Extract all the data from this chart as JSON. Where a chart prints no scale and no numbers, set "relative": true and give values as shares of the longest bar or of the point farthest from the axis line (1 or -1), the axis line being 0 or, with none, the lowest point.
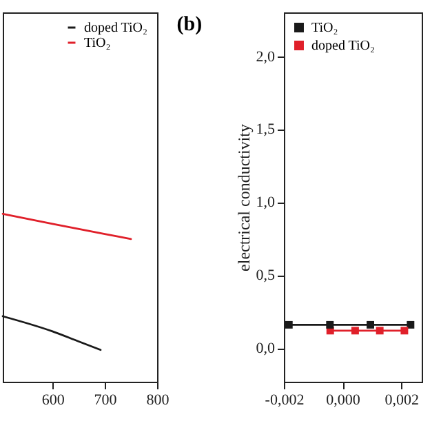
{
  "chart_data": [
    {
      "type": "line",
      "relative": true,
      "xlim": [
        505,
        800
      ],
      "xticks": [
        600,
        700,
        800
      ],
      "legend": "top right",
      "series": [
        {
          "name": "doped TiO₂",
          "color": "#1a1a1a",
          "x": [
            505,
            600,
            650,
            692
          ],
          "values": [
            0.39,
            0.3,
            0.24,
            0.19
          ]
        },
        {
          "name": "TiO₂",
          "color": "#e0202a",
          "x": [
            505,
            600,
            700,
            750
          ],
          "values": [
            1,
            0.94,
            0.88,
            0.85
          ]
        }
      ]
    },
    {
      "type": "line",
      "marker": "square",
      "ylabel": "electrical conductivity",
      "annotations": [
        "(b)"
      ],
      "legend": "top left",
      "xlim": [
        -0.002,
        0.0027
      ],
      "xticks": [
        {
          "value": -0.002,
          "label": "-0,002"
        },
        {
          "value": 0,
          "label": "0,000"
        },
        {
          "value": 0.002,
          "label": "0,002"
        }
      ],
      "ylim": [
        -0.23,
        2.3
      ],
      "yticks": [
        {
          "value": 0,
          "label": "0,0"
        },
        {
          "value": 0.5,
          "label": "0,5"
        },
        {
          "value": 1,
          "label": "1,0"
        },
        {
          "value": 1.5,
          "label": "1,5"
        },
        {
          "value": 2,
          "label": "2,0"
        }
      ],
      "series": [
        {
          "name": "TiO₂",
          "color": "#1a1a1a",
          "x": [
            -0.00183,
            -0.00043,
            0.00095,
            0.00232
          ],
          "values": [
            0.16,
            0.16,
            0.16,
            0.16
          ]
        },
        {
          "name": "doped TiO₂",
          "color": "#e0202a",
          "x": [
            -0.00042,
            0.00043,
            0.00127,
            0.00211
          ],
          "values": [
            0.12,
            0.12,
            0.12,
            0.12
          ]
        }
      ]
    }
  ]
}
